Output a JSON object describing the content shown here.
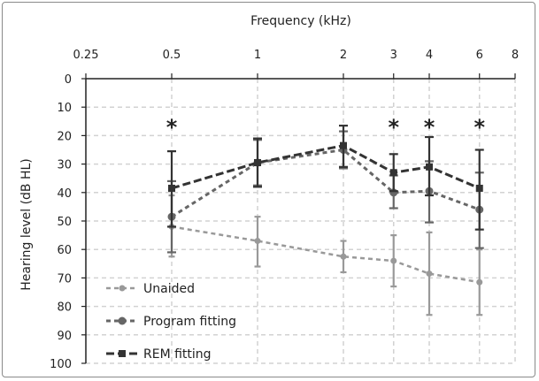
{
  "chart_data": {
    "type": "line",
    "title": "",
    "xlabel": "Frequency (kHz)",
    "ylabel": "Hearing level (dB HL)",
    "x_scale": "log",
    "x_ticks": [
      0.25,
      0.5,
      1,
      2,
      3,
      4,
      6,
      8
    ],
    "x_tick_labels": [
      "0.25",
      "0.5",
      "1",
      "2",
      "3",
      "4",
      "6",
      "8"
    ],
    "x_axis_position": "top",
    "y_ticks": [
      0,
      10,
      20,
      30,
      40,
      50,
      60,
      70,
      80,
      90,
      100
    ],
    "y_tick_labels": [
      "0",
      "10",
      "20",
      "30",
      "40",
      "50",
      "60",
      "70",
      "80",
      "90",
      "100"
    ],
    "ylim": [
      0,
      100
    ],
    "y_inverted": true,
    "grid": true,
    "legend_position": "bottom-left",
    "annotations": [
      {
        "text": "*",
        "x": 0.5
      },
      {
        "text": "*",
        "x": 3
      },
      {
        "text": "*",
        "x": 4
      },
      {
        "text": "*",
        "x": 6
      }
    ],
    "series": [
      {
        "name": "Unaided",
        "color": "#999999",
        "marker": "circle",
        "x": [
          0.5,
          1,
          2,
          3,
          4,
          6
        ],
        "values": [
          52,
          57,
          62.5,
          64,
          68.5,
          71.5
        ],
        "error_low": [
          41,
          48.5,
          57,
          55,
          54,
          60
        ],
        "error_high": [
          62.5,
          66,
          68,
          73,
          83,
          83
        ]
      },
      {
        "name": "Program fitting",
        "color": "#666666",
        "marker": "circle",
        "x": [
          0.5,
          1,
          2,
          3,
          4,
          6
        ],
        "values": [
          48.5,
          29.5,
          25,
          40,
          39.5,
          46
        ],
        "error_low": [
          36,
          21.5,
          18.5,
          34,
          29,
          33
        ],
        "error_high": [
          61,
          37.5,
          31.5,
          45.5,
          50.5,
          59.5
        ]
      },
      {
        "name": "REM fitting",
        "color": "#333333",
        "marker": "square",
        "x": [
          0.5,
          1,
          2,
          3,
          4,
          6
        ],
        "values": [
          38.5,
          29.5,
          23.5,
          33,
          31,
          38.5
        ],
        "error_low": [
          25.5,
          21,
          16.5,
          26.5,
          20.5,
          25
        ],
        "error_high": [
          52,
          38,
          31,
          39.5,
          41,
          53
        ]
      }
    ]
  }
}
